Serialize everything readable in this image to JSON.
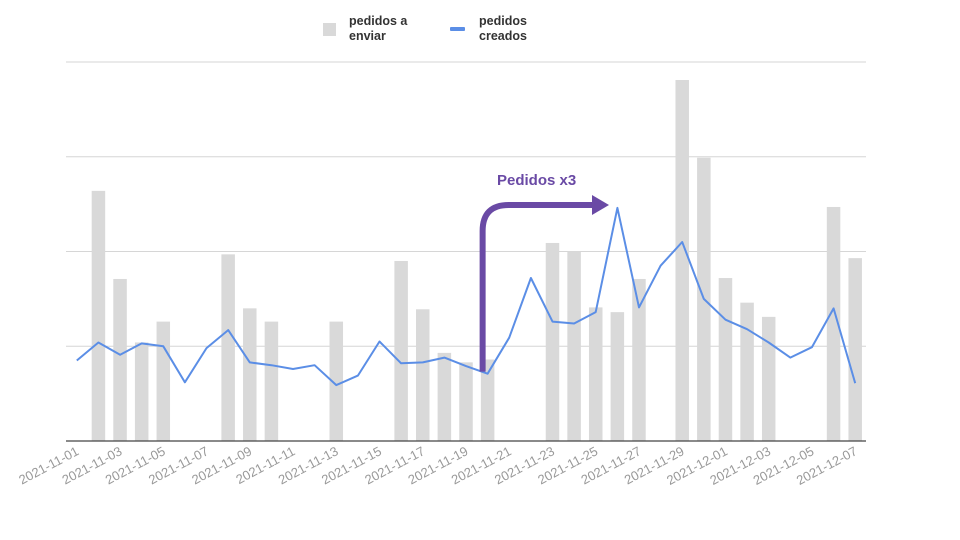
{
  "chart_data": {
    "type": "bar+line",
    "title": "",
    "xlabel": "",
    "ylabel": "",
    "ylim": [
      0,
      4
    ],
    "grid": true,
    "legend_placement": "top",
    "categories": [
      "2021-11-01",
      "2021-11-02",
      "2021-11-03",
      "2021-11-04",
      "2021-11-05",
      "2021-11-06",
      "2021-11-07",
      "2021-11-08",
      "2021-11-09",
      "2021-11-10",
      "2021-11-11",
      "2021-11-12",
      "2021-11-13",
      "2021-11-14",
      "2021-11-15",
      "2021-11-16",
      "2021-11-17",
      "2021-11-18",
      "2021-11-19",
      "2021-11-20",
      "2021-11-21",
      "2021-11-22",
      "2021-11-23",
      "2021-11-24",
      "2021-11-25",
      "2021-11-26",
      "2021-11-27",
      "2021-11-28",
      "2021-11-29",
      "2021-11-30",
      "2021-12-01",
      "2021-12-02",
      "2021-12-03",
      "2021-12-04",
      "2021-12-05",
      "2021-12-06",
      "2021-12-07"
    ],
    "tick_labels": [
      "2021-11-01",
      "2021-11-03",
      "2021-11-05",
      "2021-11-07",
      "2021-11-09",
      "2021-11-11",
      "2021-11-13",
      "2021-11-15",
      "2021-11-17",
      "2021-11-19",
      "2021-11-21",
      "2021-11-23",
      "2021-11-25",
      "2021-11-27",
      "2021-11-29",
      "2021-12-01",
      "2021-12-03",
      "2021-12-05",
      "2021-12-07"
    ],
    "series": [
      {
        "name": "pedidos a enviar",
        "type": "bar",
        "color": "#d9d9d9",
        "values": [
          0,
          2.64,
          1.71,
          1.04,
          1.26,
          0,
          0,
          1.97,
          1.4,
          1.26,
          0,
          0,
          1.26,
          0,
          0,
          1.9,
          1.39,
          0.93,
          0.83,
          0.86,
          0,
          0,
          2.09,
          2.0,
          1.41,
          1.36,
          1.71,
          0,
          3.81,
          2.99,
          1.72,
          1.46,
          1.31,
          0,
          0,
          2.47,
          1.93
        ]
      },
      {
        "name": "pedidos creados",
        "type": "line",
        "color": "#5b8ee6",
        "values": [
          0.85,
          1.04,
          0.91,
          1.03,
          1.0,
          0.62,
          0.98,
          1.17,
          0.83,
          0.8,
          0.76,
          0.8,
          0.59,
          0.69,
          1.05,
          0.82,
          0.83,
          0.88,
          0.79,
          0.71,
          1.09,
          1.72,
          1.26,
          1.24,
          1.36,
          2.46,
          1.41,
          1.85,
          2.1,
          1.5,
          1.28,
          1.18,
          1.04,
          0.88,
          0.99,
          1.4,
          0.61
        ]
      }
    ],
    "annotation": {
      "text": "Pedidos x3",
      "color": "#6a4aa5",
      "icon": "bent-arrow-right"
    }
  }
}
